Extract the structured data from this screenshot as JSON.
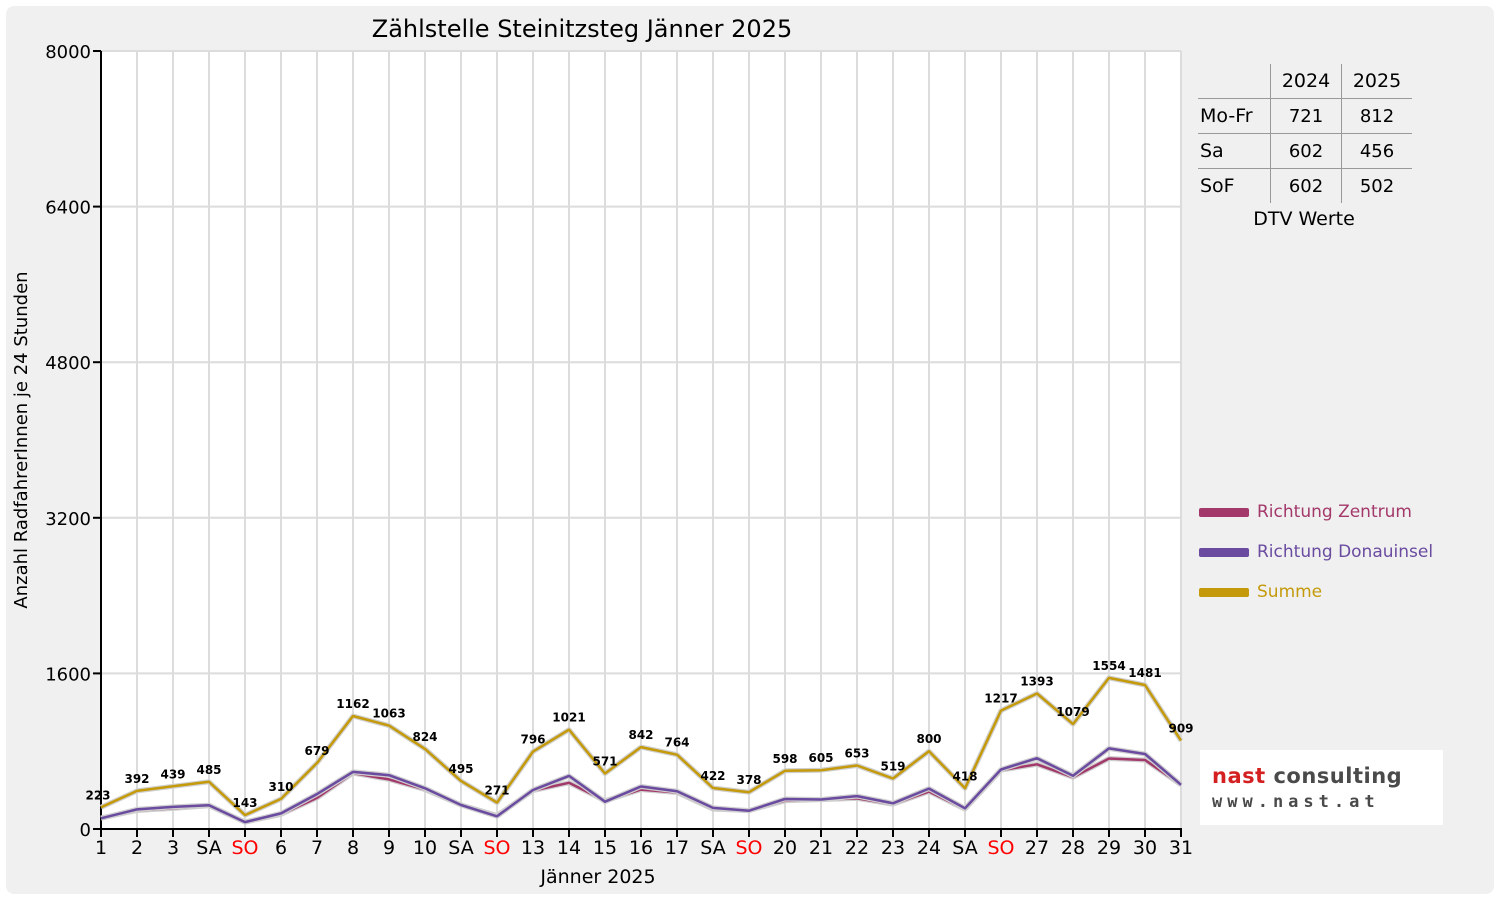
{
  "chart_data": {
    "type": "line",
    "title": "Zählstelle Steinitzsteg Jänner 2025",
    "xlabel": "Jänner 2025",
    "ylabel": "Anzahl RadfahrerInnen je 24 Stunden",
    "ylim": [
      0,
      8000
    ],
    "yticks": [
      "0",
      "1600",
      "3200",
      "4800",
      "6400",
      "8000"
    ],
    "grid": true,
    "legend_position": "right",
    "categories": [
      "1",
      "2",
      "3",
      "SA",
      "SO",
      "6",
      "7",
      "8",
      "9",
      "10",
      "SA",
      "SO",
      "13",
      "14",
      "15",
      "16",
      "17",
      "SA",
      "SO",
      "20",
      "21",
      "22",
      "23",
      "24",
      "SA",
      "SO",
      "27",
      "28",
      "29",
      "30",
      "31"
    ],
    "weekend_color": "#ff0000",
    "series": [
      {
        "name": "Richtung Zentrum",
        "color": "#a3386a",
        "values": [
          113,
          190,
          212,
          240,
          72,
          150,
          320,
          575,
          510,
          405,
          248,
          140,
          395,
          475,
          290,
          405,
          375,
          205,
          190,
          290,
          302,
          315,
          255,
          385,
          205,
          605,
          665,
          532,
          725,
          710,
          455
        ]
      },
      {
        "name": "Richtung Donauinsel",
        "color": "#6a4ba0",
        "values": [
          110,
          202,
          227,
          245,
          71,
          160,
          359,
          587,
          553,
          419,
          247,
          131,
          401,
          546,
          281,
          437,
          389,
          217,
          188,
          308,
          303,
          338,
          264,
          415,
          213,
          612,
          728,
          547,
          829,
          771,
          454
        ]
      },
      {
        "name": "Summe",
        "color": "#c49a0a",
        "values": [
          223,
          392,
          439,
          485,
          143,
          310,
          679,
          1162,
          1063,
          824,
          495,
          271,
          796,
          1021,
          571,
          842,
          764,
          422,
          378,
          598,
          605,
          653,
          519,
          800,
          418,
          1217,
          1393,
          1079,
          1554,
          1481,
          909
        ],
        "labels": [
          "223",
          "392",
          "439",
          "485",
          "143",
          "310",
          "679",
          "1162",
          "1063",
          "824",
          "495",
          "271",
          "796",
          "1021",
          "571",
          "842",
          "764",
          "422",
          "378",
          "598",
          "605",
          "653",
          "519",
          "800",
          "418",
          "1217",
          "1393",
          "1079",
          "1554",
          "1481",
          "909"
        ]
      }
    ]
  },
  "dtv_table": {
    "headers": [
      "",
      "2024",
      "2025"
    ],
    "rows": [
      {
        "label": "Mo-Fr",
        "v2024": "721",
        "v2025": "812"
      },
      {
        "label": "Sa",
        "v2024": "602",
        "v2025": "456"
      },
      {
        "label": "SoF",
        "v2024": "602",
        "v2025": "502"
      }
    ],
    "caption": "DTV Werte"
  },
  "logo": {
    "brand_part1": "nast",
    "brand_part2": " consulting",
    "url": "www.nast.at"
  }
}
